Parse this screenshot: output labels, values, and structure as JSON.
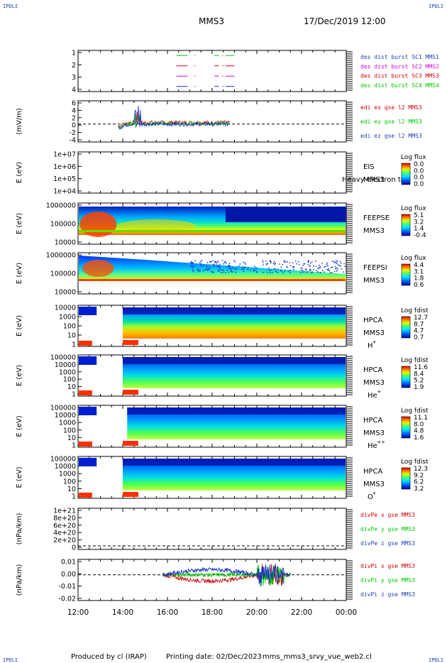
{
  "header": {
    "corner_label": "IPDLI",
    "spacecraft": "MMS3",
    "datetime": "17/Dec/2019 12:00"
  },
  "footer": {
    "produced_by": "Produced by cl (IRAP)",
    "printing_date": "Printing date: 02/Dec/2023",
    "filename": "mms_mms3_srvy_vue_web2.cl"
  },
  "colors": {
    "red": "#d40000",
    "green": "#00c800",
    "magenta": "#d000d0",
    "blue": "#1428c8",
    "legend_blue": "#1f3fb5"
  },
  "chart_data": [
    {
      "type": "line",
      "id": "burst",
      "ylim": [
        0.5,
        4.5
      ],
      "yticks": [
        "1",
        "2",
        "3",
        "4"
      ],
      "legend": [
        "des dist burst SC1 MMS1",
        "des dist burst SC2 MMS2",
        "des dist burst SC3 MMS3",
        "des dist burst SC4 MMS4"
      ],
      "series": [
        {
          "level": 4,
          "segments": [
            [
              16.4,
              16.9
            ],
            [
              17.2,
              17.25
            ],
            [
              18.1,
              18.3
            ],
            [
              18.45,
              18.5
            ],
            [
              18.6,
              19.0
            ]
          ]
        },
        {
          "level": 3,
          "segments": [
            [
              16.4,
              16.9
            ],
            [
              17.2,
              17.25
            ],
            [
              18.1,
              18.3
            ],
            [
              18.45,
              18.5
            ],
            [
              18.6,
              19.0
            ]
          ]
        },
        {
          "level": 2,
          "segments": [
            [
              16.4,
              16.9
            ],
            [
              17.2,
              17.25
            ],
            [
              18.1,
              18.3
            ],
            [
              18.45,
              18.5
            ],
            [
              18.6,
              19.0
            ]
          ]
        },
        {
          "level": 1,
          "segments": [
            [
              16.4,
              16.9
            ],
            [
              17.2,
              17.25
            ],
            [
              18.1,
              18.3
            ],
            [
              18.45,
              18.5
            ],
            [
              18.6,
              19.0
            ]
          ]
        }
      ]
    },
    {
      "type": "line",
      "id": "edi",
      "ylabel": "(mV/m)",
      "ylim": [
        -5,
        6.5
      ],
      "yticks": [
        "6",
        "4",
        "2",
        "0",
        "-2",
        "-4"
      ],
      "legend": [
        "edi ex gse l2 MMS3",
        "edi ey gse l2 MMS3",
        "edi ez gse l2 MMS3"
      ],
      "x_range": [
        13.8,
        18.8
      ]
    },
    {
      "type": "heatmap",
      "id": "eis",
      "ylabel": "E (eV)",
      "yticks": [
        "1e+07",
        "1e+06",
        "1e+05",
        "1e+04"
      ],
      "name": [
        "EIS",
        "MMS3"
      ],
      "overlay": "Heavy electron to",
      "cbar_title": "Log flux",
      "cbar_ticks": [
        "0.0",
        "0.0",
        "0.0",
        "0.0"
      ]
    },
    {
      "type": "heatmap",
      "id": "feepse",
      "ylabel": "E (eV)",
      "yticks": [
        "1000000",
        "100000",
        "10000"
      ],
      "name": [
        "FEEPSE",
        "MMS3"
      ],
      "cbar_title": "Log flux",
      "cbar_ticks": [
        "5.1",
        "3.2",
        "1.4",
        "-0.4"
      ]
    },
    {
      "type": "heatmap",
      "id": "feepsi",
      "ylabel": "E (eV)",
      "yticks": [
        "1000000",
        "100000",
        "10000"
      ],
      "name": [
        "FEEPSI",
        "MMS3"
      ],
      "cbar_title": "Log flux",
      "cbar_ticks": [
        "4.4",
        "3.1",
        "1.8",
        "0.6"
      ]
    },
    {
      "type": "heatmap",
      "id": "hpca_h",
      "ylabel": "E (eV)",
      "yticks": [
        "10000",
        "1000",
        "100",
        "10",
        "1"
      ],
      "name": [
        "HPCA",
        "MMS3"
      ],
      "species": "H",
      "species_sup": "+",
      "cbar_title": "Log fdist",
      "cbar_ticks": [
        "12.7",
        "8.7",
        "4.7",
        "0.7"
      ]
    },
    {
      "type": "heatmap",
      "id": "hpca_he",
      "ylabel": "E (eV)",
      "yticks": [
        "100000",
        "10000",
        "1000",
        "100",
        "10",
        "1"
      ],
      "name": [
        "HPCA",
        "MMS3"
      ],
      "species": "He",
      "species_sup": "+",
      "cbar_title": "Log fdist",
      "cbar_ticks": [
        "11.6",
        "8.4",
        "5.2",
        "1.9"
      ]
    },
    {
      "type": "heatmap",
      "id": "hpca_he2",
      "ylabel": "E (eV)",
      "yticks": [
        "100000",
        "10000",
        "1000",
        "100",
        "10",
        "1"
      ],
      "name": [
        "HPCA",
        "MMS3"
      ],
      "species": "He",
      "species_sup": "++",
      "cbar_title": "Log fdist",
      "cbar_ticks": [
        "11.1",
        "8.0",
        "4.8",
        "1.6"
      ]
    },
    {
      "type": "heatmap",
      "id": "hpca_o",
      "ylabel": "E (eV)",
      "yticks": [
        "100000",
        "10000",
        "1000",
        "100",
        "10",
        "1"
      ],
      "name": [
        "HPCA",
        "MMS3"
      ],
      "species": "O",
      "species_sup": "+",
      "cbar_title": "Log fdist",
      "cbar_ticks": [
        "12.3",
        "9.2",
        "6.2",
        "3.2"
      ]
    },
    {
      "type": "line",
      "id": "divpe",
      "ylabel": "(nPa/km)",
      "ylim": [
        -1e+20,
        1.05e+21
      ],
      "yticks": [
        "1e+21",
        "8e+20",
        "6e+20",
        "4e+20",
        "2e+20",
        "0"
      ],
      "legend": [
        "divPe x gse MMS3",
        "divPe y gse MMS3",
        "divPe z gse MMS3"
      ]
    },
    {
      "type": "line",
      "id": "divpi",
      "ylabel": "(nPa/km)",
      "ylim": [
        -0.025,
        0.015
      ],
      "yticks": [
        "0.01",
        "0.00",
        "-0.01",
        "-0.02"
      ],
      "legend": [
        "divPi x gse MMS3",
        "divPi y gse MMS3",
        "divPi z gse MMS3"
      ],
      "x_range": [
        15.8,
        21.5
      ]
    }
  ],
  "x_axis": {
    "range": [
      12,
      24
    ],
    "ticks": [
      "12:00",
      "14:00",
      "16:00",
      "18:00",
      "20:00",
      "22:00",
      "00:00"
    ]
  }
}
